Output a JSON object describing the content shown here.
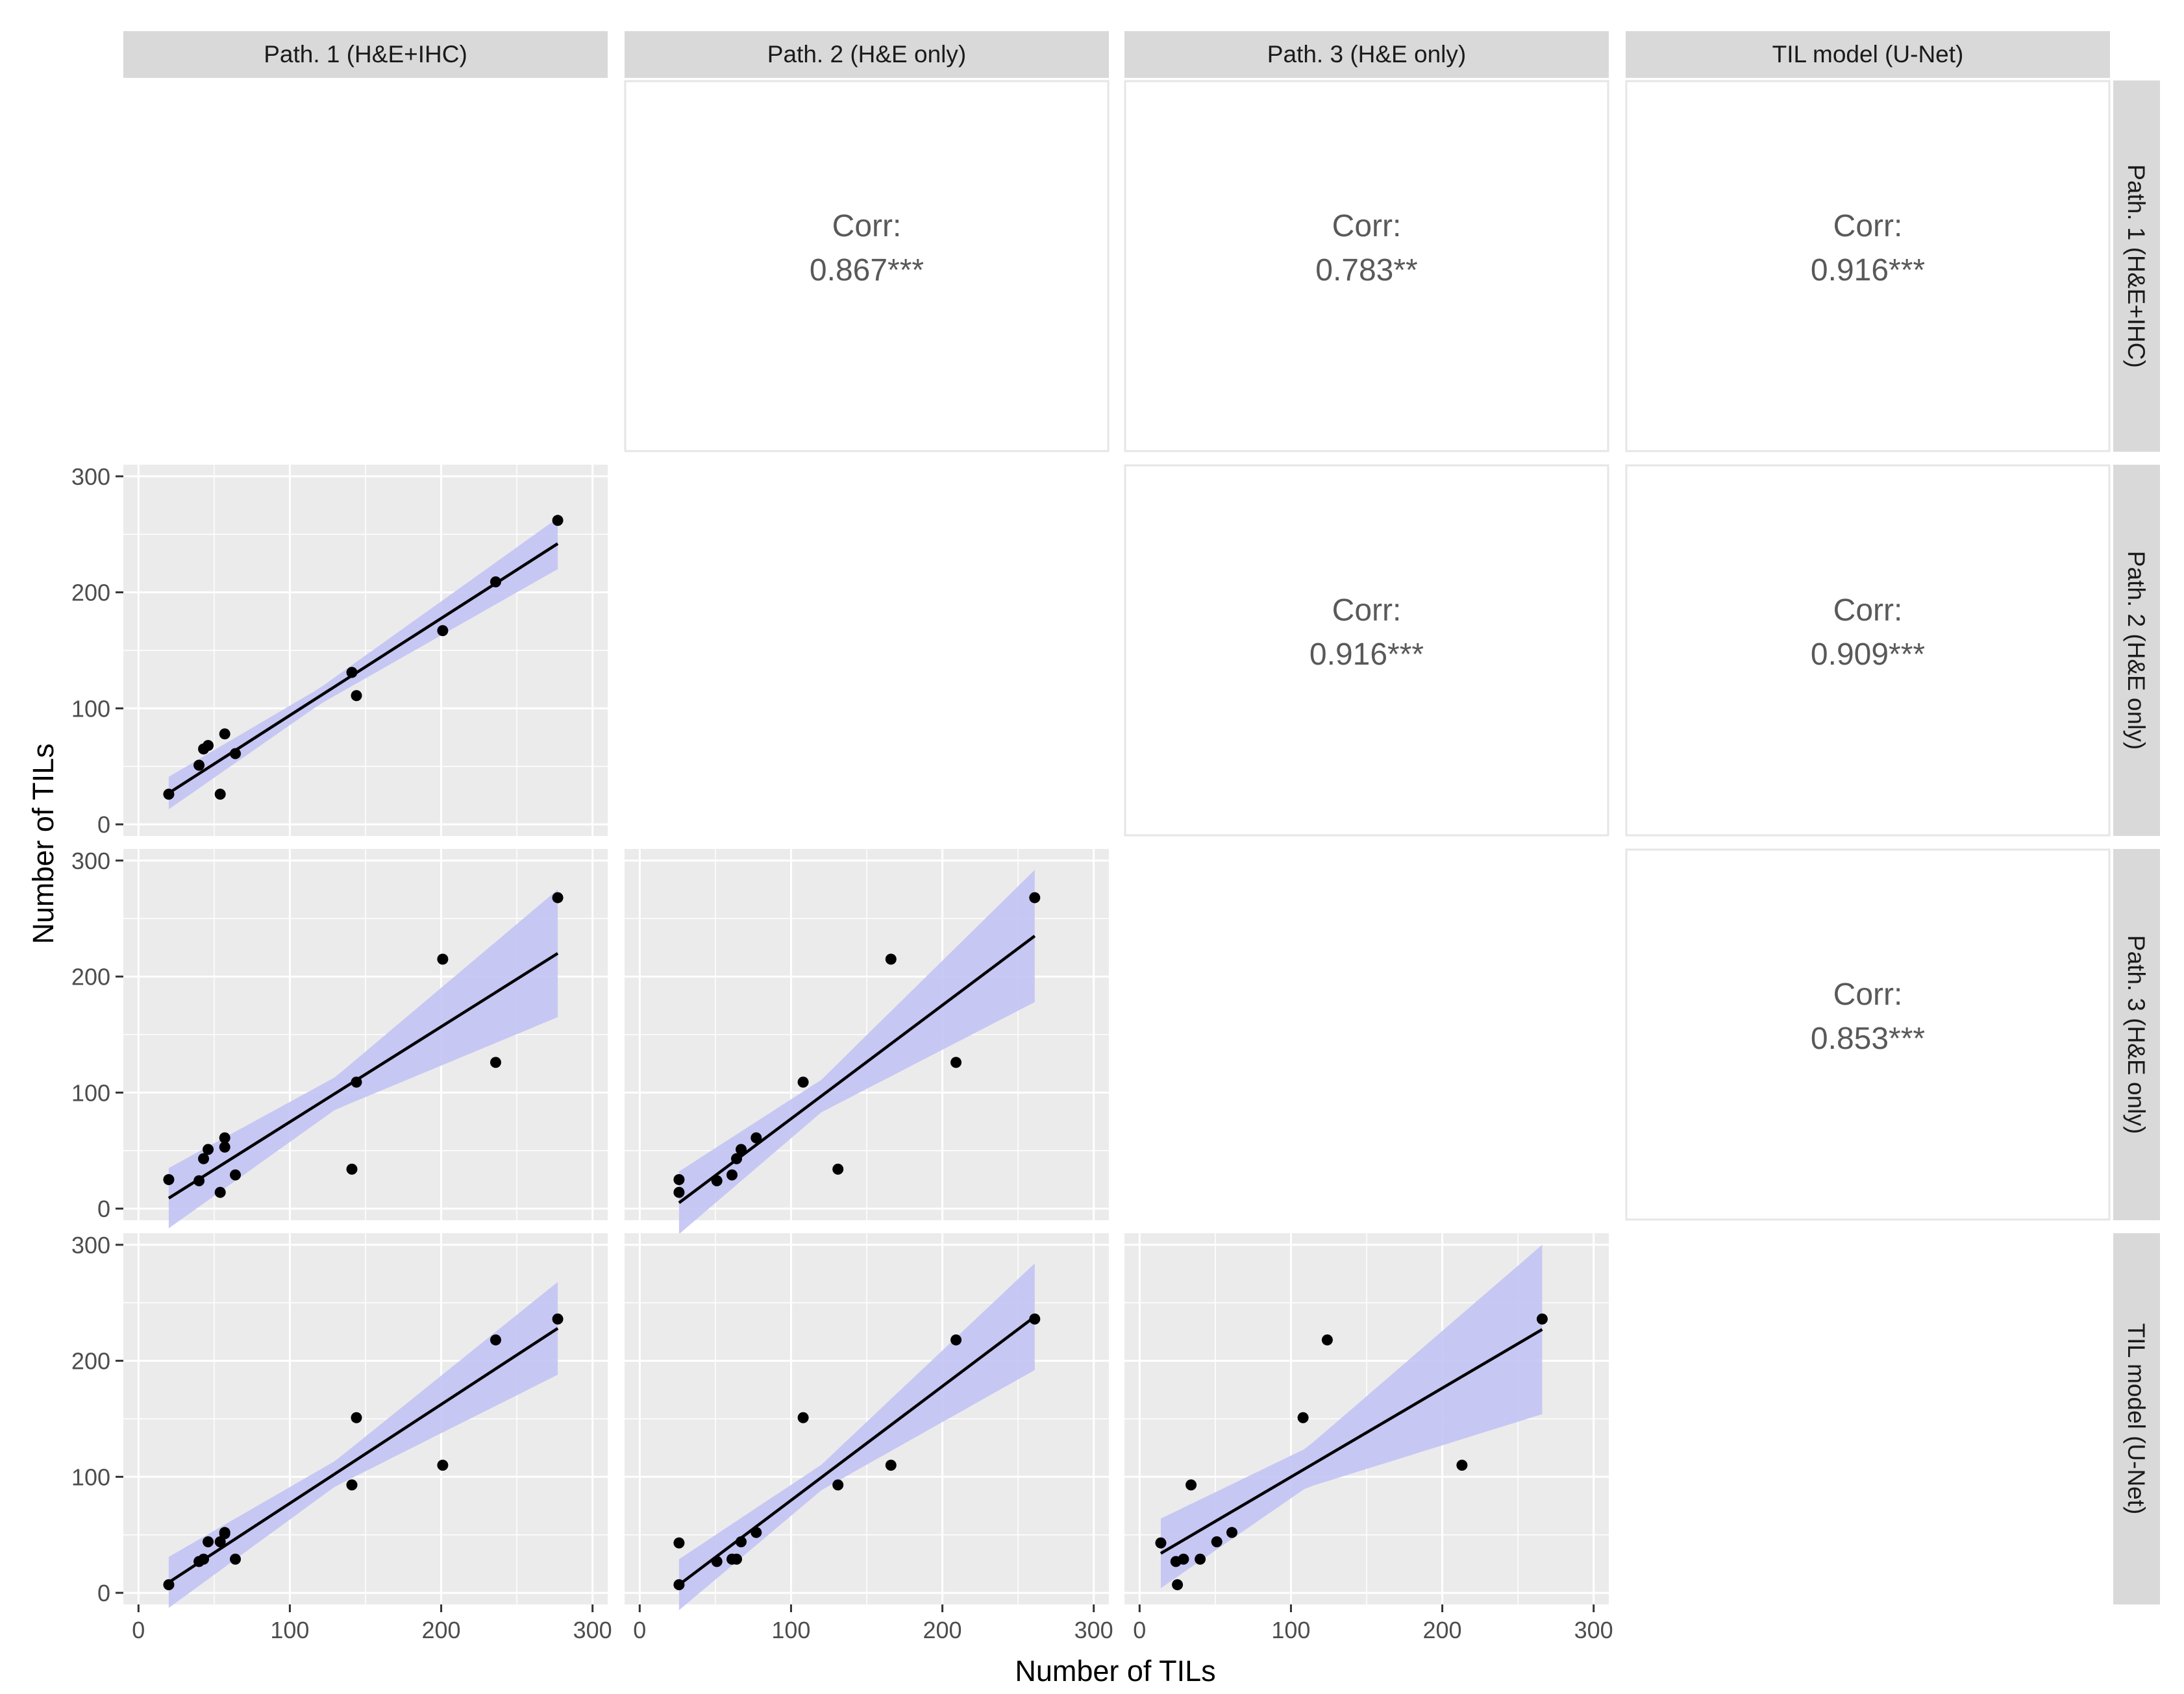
{
  "chart_data": {
    "type": "scatter",
    "variables": [
      "Path. 1 (H&E+IHC)",
      "Path. 2 (H&E only)",
      "Path. 3 (H&E only)",
      "TIL model (U-Net)"
    ],
    "xlabel": "Number of TILs",
    "ylabel": "Number of TILs",
    "xlim": [
      -10,
      310
    ],
    "ylim": [
      -10,
      310
    ],
    "ticks": [
      0,
      100,
      200,
      300
    ],
    "corr_label": "Corr:",
    "panels": [
      {
        "row": 1,
        "col": 0,
        "x": [
          20,
          40,
          43,
          46,
          54,
          57,
          64,
          141,
          144,
          201,
          236,
          277
        ],
        "y": [
          26,
          51,
          65,
          68,
          26,
          78,
          61,
          131,
          111,
          167,
          209,
          262
        ],
        "fit": {
          "x0": 20,
          "y0": 27,
          "x1": 277,
          "y1": 242
        },
        "ci_half_width": {
          "x0": 20,
          "w0": 14,
          "xm": 120,
          "wm": 7,
          "x1": 277,
          "w1": 22
        }
      },
      {
        "row": 2,
        "col": 0,
        "x": [
          20,
          40,
          43,
          46,
          54,
          57,
          57,
          64,
          141,
          144,
          201,
          236,
          277
        ],
        "y": [
          25,
          24,
          43,
          51,
          14,
          61,
          53,
          29,
          34,
          109,
          215,
          126,
          268
        ],
        "fit": {
          "x0": 20,
          "y0": 9,
          "x1": 277,
          "y1": 220
        },
        "ci_half_width": {
          "x0": 20,
          "w0": 26,
          "xm": 130,
          "wm": 14,
          "x1": 277,
          "w1": 55
        }
      },
      {
        "row": 2,
        "col": 1,
        "x": [
          26,
          26,
          51,
          61,
          64,
          67,
          77,
          108,
          131,
          166,
          209,
          261
        ],
        "y": [
          25,
          14,
          24,
          29,
          43,
          51,
          61,
          109,
          34,
          215,
          126,
          268
        ],
        "fit": {
          "x0": 26,
          "y0": 5,
          "x1": 261,
          "y1": 235
        },
        "ci_half_width": {
          "x0": 26,
          "w0": 27,
          "xm": 120,
          "wm": 14,
          "x1": 261,
          "w1": 57
        }
      },
      {
        "row": 3,
        "col": 0,
        "x": [
          20,
          40,
          43,
          46,
          54,
          57,
          57,
          64,
          141,
          144,
          201,
          236,
          277
        ],
        "y": [
          7,
          27,
          29,
          44,
          44,
          52,
          51,
          29,
          93,
          151,
          110,
          218,
          236
        ],
        "fit": {
          "x0": 20,
          "y0": 9,
          "x1": 277,
          "y1": 228
        },
        "ci_half_width": {
          "x0": 20,
          "w0": 22,
          "xm": 130,
          "wm": 11,
          "x1": 277,
          "w1": 40
        }
      },
      {
        "row": 3,
        "col": 1,
        "x": [
          26,
          26,
          51,
          61,
          64,
          67,
          77,
          108,
          131,
          166,
          209,
          261
        ],
        "y": [
          7,
          43,
          27,
          29,
          29,
          44,
          52,
          151,
          93,
          110,
          218,
          236
        ],
        "fit": {
          "x0": 26,
          "y0": 7,
          "x1": 261,
          "y1": 238
        },
        "ci_half_width": {
          "x0": 26,
          "w0": 22,
          "xm": 120,
          "wm": 11,
          "x1": 261,
          "w1": 46
        }
      },
      {
        "row": 3,
        "col": 2,
        "x": [
          14,
          24,
          25,
          29,
          34,
          40,
          51,
          61,
          108,
          124,
          213,
          266
        ],
        "y": [
          43,
          27,
          7,
          29,
          93,
          29,
          44,
          52,
          151,
          218,
          110,
          236
        ],
        "fit": {
          "x0": 14,
          "y0": 34,
          "x1": 266,
          "y1": 227
        },
        "ci_half_width": {
          "x0": 14,
          "w0": 30,
          "xm": 110,
          "wm": 17,
          "x1": 266,
          "w1": 73
        }
      }
    ],
    "correlations": [
      {
        "row": 0,
        "col": 1,
        "value": "0.867***"
      },
      {
        "row": 0,
        "col": 2,
        "value": "0.783**"
      },
      {
        "row": 0,
        "col": 3,
        "value": "0.916***"
      },
      {
        "row": 1,
        "col": 2,
        "value": "0.916***"
      },
      {
        "row": 1,
        "col": 3,
        "value": "0.909***"
      },
      {
        "row": 2,
        "col": 3,
        "value": "0.853***"
      }
    ],
    "colors": {
      "panel_bg": "#ebebeb",
      "grid": "#ffffff",
      "strip_bg": "#d9d9d9",
      "ribbon": "#c3c3f5",
      "line": "#000000",
      "point": "#000000",
      "corr_border": "#e6e6e6",
      "corr_text": "#595959"
    }
  }
}
